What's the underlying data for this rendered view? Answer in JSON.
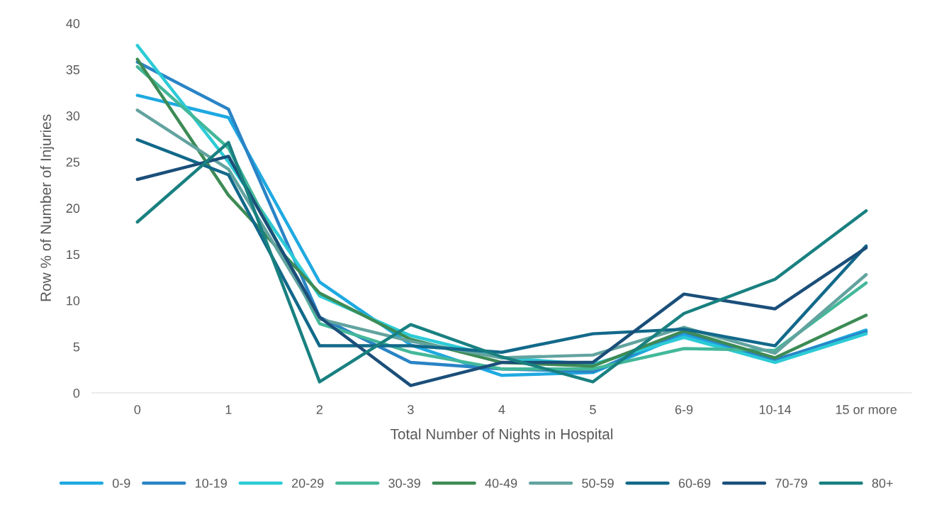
{
  "chart_data": {
    "type": "line",
    "xlabel": "Total Number of Nights in Hospital",
    "ylabel": "Row % of Number of Injuries",
    "categories": [
      "0",
      "1",
      "2",
      "3",
      "4",
      "5",
      "6-9",
      "10-14",
      "15 or more"
    ],
    "ylim": [
      0,
      40
    ],
    "yticks": [
      0,
      5,
      10,
      15,
      20,
      25,
      30,
      35,
      40
    ],
    "grid": false,
    "legend": "bottom",
    "marker": "none",
    "line_style": "solid",
    "series": [
      {
        "name": "0-9",
        "color": "#1fa9e1",
        "values": [
          32.2,
          29.8,
          12.0,
          5.2,
          1.9,
          2.2,
          6.3,
          3.5,
          6.8
        ]
      },
      {
        "name": "10-19",
        "color": "#2a84c6",
        "values": [
          35.8,
          30.7,
          8.2,
          3.3,
          2.6,
          2.3,
          6.6,
          3.6,
          6.6
        ]
      },
      {
        "name": "20-29",
        "color": "#2ccbd6",
        "values": [
          37.6,
          25.0,
          10.5,
          6.2,
          3.8,
          3.1,
          6.0,
          3.3,
          6.4
        ]
      },
      {
        "name": "30-39",
        "color": "#43b89a",
        "values": [
          35.3,
          26.5,
          7.5,
          4.4,
          2.6,
          2.6,
          4.8,
          4.6,
          11.9
        ]
      },
      {
        "name": "40-49",
        "color": "#3d8b55",
        "values": [
          36.1,
          21.4,
          10.8,
          5.8,
          3.3,
          2.9,
          6.7,
          3.8,
          8.4
        ]
      },
      {
        "name": "50-59",
        "color": "#62a39f",
        "values": [
          30.6,
          24.2,
          8.0,
          5.6,
          3.8,
          4.1,
          7.1,
          4.3,
          12.8
        ]
      },
      {
        "name": "60-69",
        "color": "#12698a",
        "values": [
          27.4,
          23.6,
          5.1,
          5.1,
          4.4,
          6.4,
          6.9,
          5.1,
          15.9
        ]
      },
      {
        "name": "70-79",
        "color": "#1b4f7a",
        "values": [
          23.1,
          25.6,
          8.2,
          0.8,
          3.3,
          3.3,
          10.7,
          9.1,
          15.7
        ]
      },
      {
        "name": "80+",
        "color": "#198080",
        "values": [
          18.5,
          27.1,
          1.2,
          7.4,
          3.9,
          1.2,
          8.6,
          12.3,
          19.7
        ]
      }
    ]
  }
}
